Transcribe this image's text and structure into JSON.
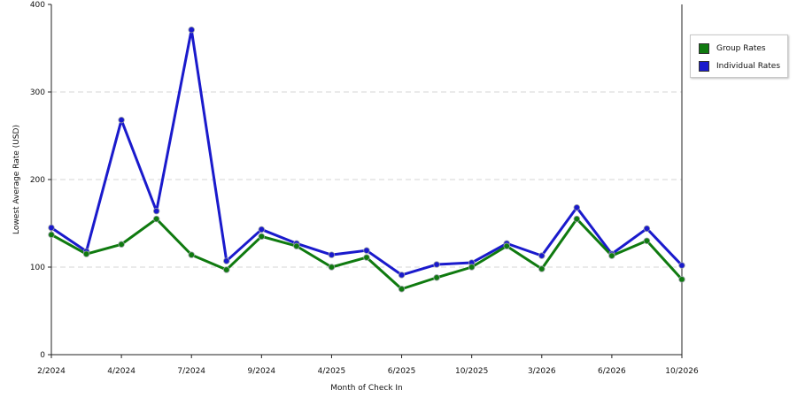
{
  "chart_data": {
    "type": "line",
    "xlabel": "Month of Check In",
    "ylabel": "Lowest Average Rate (USD)",
    "ylim": [
      0,
      400
    ],
    "yticks": [
      0,
      100,
      200,
      300,
      400
    ],
    "grid": true,
    "legend_position": "right",
    "x_tick_labels": [
      "2/2024",
      "4/2024",
      "7/2024",
      "9/2024",
      "4/2025",
      "6/2025",
      "10/2025",
      "3/2026",
      "6/2026",
      "10/2026"
    ],
    "series": [
      {
        "name": "Group Rates",
        "color": "#0f7a0f",
        "values": [
          137,
          115,
          126,
          155,
          114,
          97,
          135,
          124,
          100,
          111,
          75,
          88,
          100,
          124,
          98,
          155,
          113,
          130,
          86
        ]
      },
      {
        "name": "Individual Rates",
        "color": "#1a1acc",
        "values": [
          145,
          118,
          268,
          164,
          371,
          107,
          143,
          127,
          114,
          119,
          91,
          103,
          105,
          127,
          113,
          168,
          115,
          144,
          102
        ]
      }
    ]
  }
}
